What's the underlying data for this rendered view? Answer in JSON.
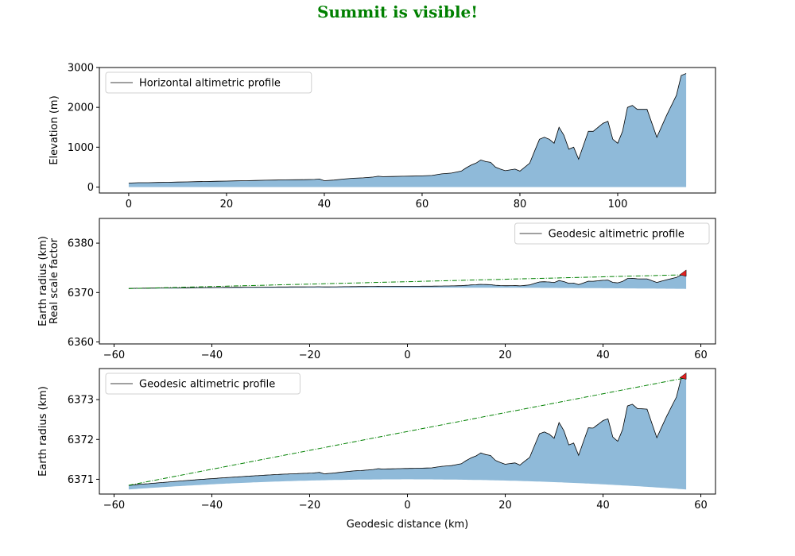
{
  "title": "Summit is visible!",
  "title_color": "#008000",
  "colors": {
    "fill": "#8fbad9",
    "profile": "#000000",
    "sightline": "#008000",
    "visible_part": "#e02020"
  },
  "chart_data": [
    {
      "type": "area",
      "legend": "Horizontal altimetric profile",
      "legend_position": "upper-left",
      "xlabel": "",
      "ylabel": "Elevation (m)",
      "xlim": [
        -6,
        120
      ],
      "ylim": [
        -150,
        3000
      ],
      "xticks": [
        0,
        20,
        40,
        60,
        80,
        100
      ],
      "yticks": [
        0,
        1000,
        2000,
        3000
      ],
      "x": [
        0,
        2,
        4,
        6,
        8,
        10,
        12,
        14,
        16,
        18,
        20,
        22,
        24,
        26,
        28,
        30,
        32,
        34,
        36,
        38,
        39,
        40,
        42,
        44,
        46,
        48,
        50,
        51,
        52,
        54,
        56,
        58,
        60,
        62,
        64,
        66,
        68,
        69,
        70,
        71,
        72,
        73,
        74,
        75,
        76,
        77,
        78,
        79,
        80,
        82,
        83,
        84,
        85,
        86,
        87,
        88,
        89,
        90,
        91,
        92,
        94,
        95,
        96,
        97,
        98,
        99,
        100,
        101,
        102,
        103,
        104,
        106,
        108,
        110,
        112,
        113,
        114
      ],
      "y": [
        100,
        110,
        110,
        115,
        120,
        125,
        130,
        135,
        140,
        145,
        150,
        155,
        160,
        165,
        170,
        175,
        180,
        182,
        185,
        190,
        200,
        160,
        175,
        200,
        220,
        230,
        250,
        270,
        260,
        265,
        270,
        275,
        280,
        290,
        330,
        350,
        400,
        480,
        550,
        600,
        680,
        640,
        620,
        500,
        450,
        410,
        430,
        450,
        400,
        600,
        900,
        1200,
        1250,
        1200,
        1100,
        1500,
        1300,
        950,
        1000,
        700,
        1400,
        1400,
        1500,
        1600,
        1650,
        1200,
        1100,
        1400,
        2000,
        2050,
        1950,
        1950,
        1250,
        1800,
        2300,
        2800,
        2850
      ],
      "fill_baseline": 0
    },
    {
      "type": "area",
      "legend": "Geodesic altimetric profile",
      "legend_position": "upper-right",
      "xlabel": "",
      "ylabel": "Earth radius (km)\nReal scale factor",
      "xlim": [
        -63,
        63
      ],
      "ylim": [
        6359.6,
        6385
      ],
      "xticks": [
        -60,
        -40,
        -20,
        0,
        20,
        40,
        60
      ],
      "yticks": [
        6360,
        6370,
        6380
      ],
      "x_range": [
        -57,
        57
      ],
      "base_radius": 6371.0,
      "base_curvature_r": 6371.0,
      "sightline": [
        [
          -57,
          6370.8
        ],
        [
          57,
          6373.6
        ]
      ]
    },
    {
      "type": "area",
      "legend": "Geodesic altimetric profile",
      "legend_position": "upper-left",
      "xlabel": "Geodesic distance (km)",
      "ylabel": "Earth radius (km)",
      "xlim": [
        -63,
        63
      ],
      "ylim": [
        6370.63,
        6373.78
      ],
      "xticks": [
        -60,
        -40,
        -20,
        0,
        20,
        40,
        60
      ],
      "yticks": [
        6371,
        6372,
        6373
      ],
      "x_range": [
        -57,
        57
      ],
      "base_radius": 6371.0,
      "base_curvature_r": 6371.0,
      "sightline": [
        [
          -57,
          6370.85
        ],
        [
          57,
          6373.55
        ]
      ]
    }
  ]
}
